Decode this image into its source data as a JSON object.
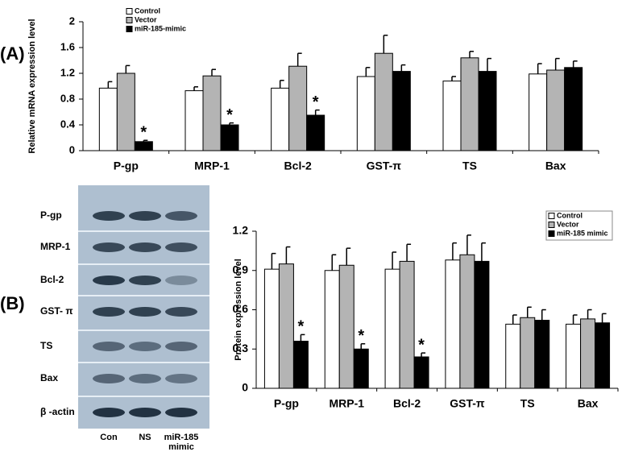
{
  "panels": [
    "(A)",
    "(B)"
  ],
  "blot": {
    "rows": [
      "P-gp",
      "MRP-1",
      "Bcl-2",
      "GST- π",
      "TS",
      "Bax",
      "β -actin"
    ],
    "lanes": [
      "Con",
      "NS",
      "miR-185 mimic"
    ]
  },
  "chart_data": [
    {
      "type": "bar",
      "y_label": "Relative mRNA expression level",
      "categories": [
        "P-gp",
        "MRP-1",
        "Bcl-2",
        "GST-π",
        "TS",
        "Bax"
      ],
      "series": [
        {
          "name": "Control",
          "color": "#ffffff",
          "values": [
            0.97,
            0.93,
            0.97,
            1.15,
            1.08,
            1.19
          ],
          "errors": [
            0.1,
            0.06,
            0.12,
            0.14,
            0.07,
            0.16
          ]
        },
        {
          "name": "Vector",
          "color": "#b4b4b4",
          "values": [
            1.2,
            1.16,
            1.31,
            1.51,
            1.44,
            1.25
          ],
          "errors": [
            0.12,
            0.1,
            0.2,
            0.28,
            0.1,
            0.18
          ]
        },
        {
          "name": "miR-185-mimic",
          "color": "#000000",
          "values": [
            0.14,
            0.4,
            0.55,
            1.23,
            1.23,
            1.29
          ],
          "errors": [
            0.02,
            0.03,
            0.08,
            0.1,
            0.2,
            0.1
          ],
          "significance": [
            "*",
            "*",
            "*",
            null,
            null,
            null
          ]
        }
      ],
      "ylim": [
        0,
        2
      ],
      "yticks": [
        0,
        0.4,
        0.8,
        1.2,
        1.6,
        2
      ],
      "grid": false,
      "legend": "upper left"
    },
    {
      "type": "bar",
      "y_label": "Protein expression level",
      "categories": [
        "P-gp",
        "MRP-1",
        "Bcl-2",
        "GST-π",
        "TS",
        "Bax"
      ],
      "series": [
        {
          "name": "Control",
          "color": "#ffffff",
          "values": [
            0.91,
            0.9,
            0.91,
            0.98,
            0.49,
            0.49
          ],
          "errors": [
            0.12,
            0.12,
            0.13,
            0.13,
            0.07,
            0.07
          ]
        },
        {
          "name": "Vector",
          "color": "#b4b4b4",
          "values": [
            0.95,
            0.94,
            0.97,
            1.02,
            0.54,
            0.53
          ],
          "errors": [
            0.13,
            0.13,
            0.13,
            0.15,
            0.08,
            0.07
          ]
        },
        {
          "name": "miR-185 mimic",
          "color": "#000000",
          "values": [
            0.36,
            0.3,
            0.24,
            0.97,
            0.52,
            0.5
          ],
          "errors": [
            0.05,
            0.04,
            0.03,
            0.14,
            0.08,
            0.07
          ],
          "significance": [
            "*",
            "*",
            "*",
            null,
            null,
            null
          ]
        }
      ],
      "ylim": [
        0,
        1.2
      ],
      "yticks": [
        0,
        0.3,
        0.6,
        0.9,
        1.2
      ],
      "grid": false,
      "legend": "upper right"
    }
  ]
}
